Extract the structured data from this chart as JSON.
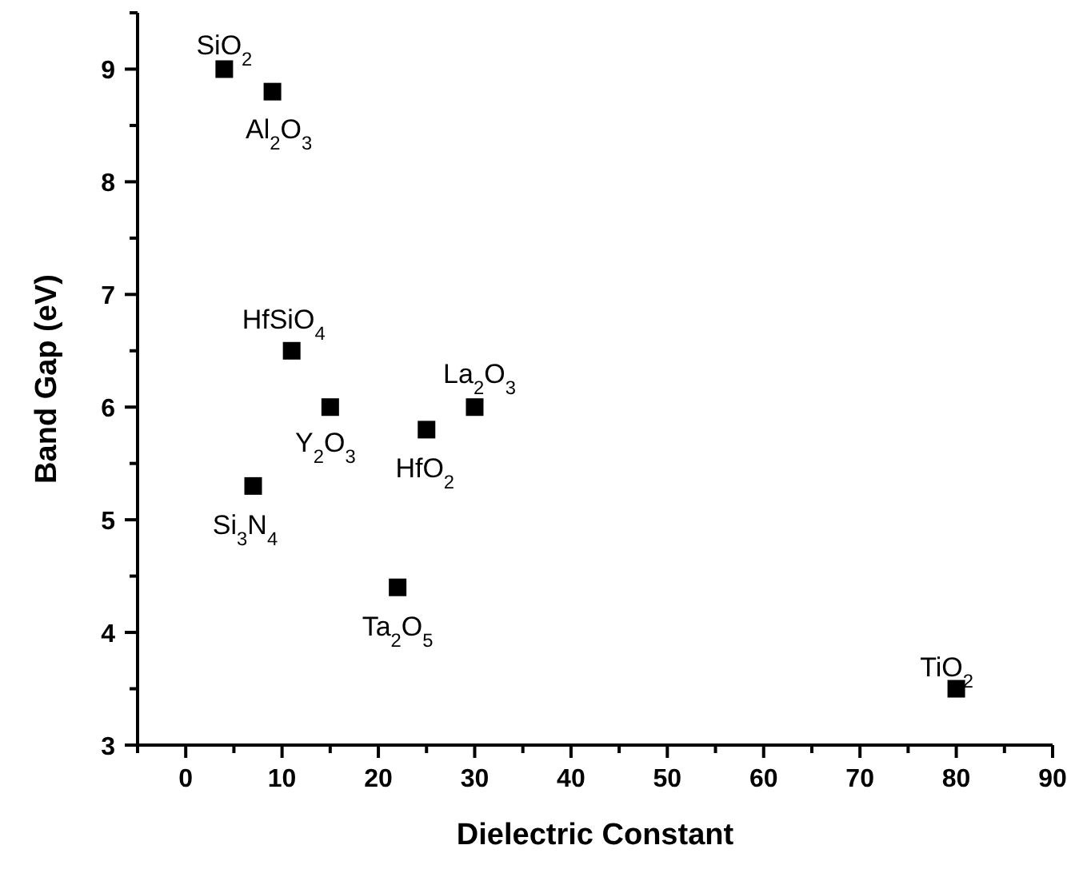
{
  "chart_data": {
    "type": "scatter",
    "xlabel": "Dielectric Constant",
    "ylabel": "Band Gap (eV)",
    "xlim": [
      -5,
      90
    ],
    "ylim": [
      3,
      9.5
    ],
    "xticks": [
      {
        "value": -5,
        "label": null
      },
      0,
      {
        "value": 5,
        "label": null
      },
      10,
      {
        "value": 15,
        "label": null
      },
      20,
      {
        "value": 25,
        "label": null
      },
      30,
      {
        "value": 35,
        "label": null
      },
      40,
      {
        "value": 45,
        "label": null
      },
      50,
      {
        "value": 55,
        "label": null
      },
      60,
      {
        "value": 65,
        "label": null
      },
      70,
      {
        "value": 75,
        "label": null
      },
      80,
      {
        "value": 85,
        "label": null
      },
      90
    ],
    "yticks": [
      3,
      {
        "value": 3.5,
        "label": null
      },
      4,
      {
        "value": 4.5,
        "label": null
      },
      5,
      {
        "value": 5.5,
        "label": null
      },
      6,
      {
        "value": 6.5,
        "label": null
      },
      7,
      {
        "value": 7.5,
        "label": null
      },
      8,
      {
        "value": 8.5,
        "label": null
      },
      9,
      {
        "value": 9.5,
        "label": null
      }
    ],
    "marker": "square",
    "grid": false,
    "series": [
      {
        "color": "#000000",
        "x": [
          4,
          9,
          11,
          15,
          30,
          25,
          7,
          22,
          80
        ],
        "values": [
          9,
          8.8,
          6.5,
          6,
          6,
          5.8,
          5.3,
          4.4,
          3.5
        ]
      }
    ],
    "annotations": [
      {
        "text": "SiO$_{2}$",
        "x": 4,
        "y": 9
      },
      {
        "text": "Al$_{2}$O$_{3}$",
        "x": 9,
        "y": 8.8
      },
      {
        "text": "HfSiO$_{4}$",
        "x": 11,
        "y": 6.5
      },
      {
        "text": "Y$_{2}$O$_{3}$",
        "x": 15,
        "y": 6
      },
      {
        "text": "La$_{2}$O$_{3}$",
        "x": 30,
        "y": 6
      },
      {
        "text": "HfO$_{2}$",
        "x": 25,
        "y": 5.8
      },
      {
        "text": "Si$_{3}$N$_{4}$",
        "x": 7,
        "y": 5.3
      },
      {
        "text": "Ta$_{2}$O$_{5}$",
        "x": 22,
        "y": 4.4
      },
      {
        "text": "TiO$_{2}$",
        "x": 80,
        "y": 3.5
      }
    ]
  }
}
